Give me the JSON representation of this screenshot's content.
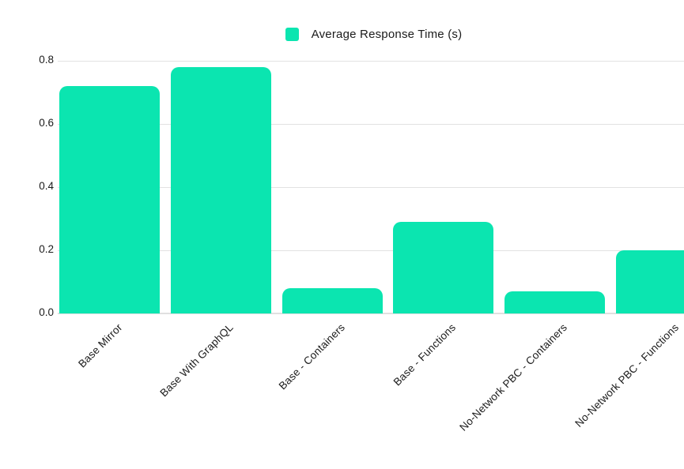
{
  "chart_data": {
    "type": "bar",
    "title": "",
    "legend": {
      "label": "Average Response Time (s)",
      "position": "top-center"
    },
    "categories": [
      "Base Mirror",
      "Base With GraphQL",
      "Base - Containers",
      "Base - Functions",
      "No-Network PBC - Containers",
      "No-Network PBC - Functions"
    ],
    "series": [
      {
        "name": "Average Response Time (s)",
        "values": [
          0.72,
          0.78,
          0.08,
          0.29,
          0.07,
          0.2
        ]
      }
    ],
    "ylabel": "",
    "xlabel": "",
    "ylim": [
      0,
      0.8
    ],
    "yticks": [
      0,
      0.2,
      0.4,
      0.6,
      0.8
    ],
    "ytick_format": "one-decimal",
    "grid": true,
    "x_label_rotation_deg": -45,
    "colors": {
      "bar": "#0be5b0",
      "gridline": "#e2e2e2",
      "baseline": "#e0e0e0",
      "text": "#1b1b1b",
      "background": "#ffffff"
    }
  }
}
